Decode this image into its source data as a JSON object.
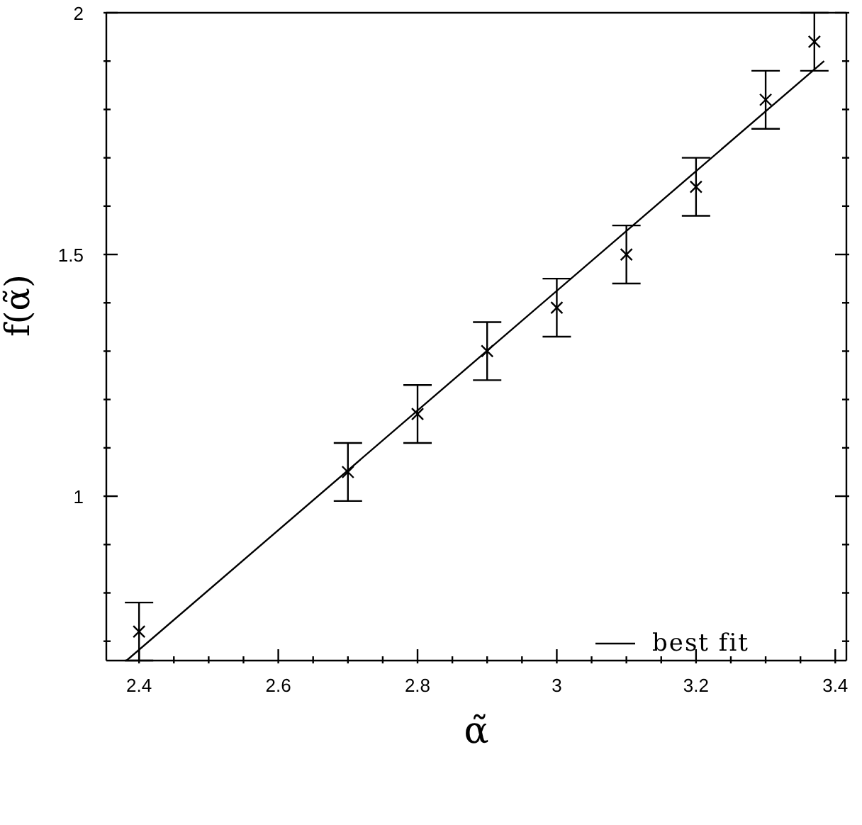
{
  "chart_data": {
    "type": "scatter",
    "xlabel": "α̃",
    "ylabel": "f(α̃)",
    "xlim": [
      2.353,
      3.416
    ],
    "ylim": [
      0.66,
      2
    ],
    "xticks": [
      2.4,
      {
        "value": 2.45,
        "label": null
      },
      {
        "value": 2.5,
        "label": null
      },
      {
        "value": 2.55,
        "label": null
      },
      2.6,
      {
        "value": 2.65,
        "label": null
      },
      {
        "value": 2.7,
        "label": null
      },
      {
        "value": 2.75,
        "label": null
      },
      2.8,
      {
        "value": 2.85,
        "label": null
      },
      {
        "value": 2.9,
        "label": null
      },
      {
        "value": 2.95,
        "label": null
      },
      3,
      {
        "value": 3.05,
        "label": null
      },
      {
        "value": 3.1,
        "label": null
      },
      {
        "value": 3.15,
        "label": null
      },
      3.2,
      {
        "value": 3.25,
        "label": null
      },
      {
        "value": 3.3,
        "label": null
      },
      {
        "value": 3.35,
        "label": null
      },
      3.4
    ],
    "yticks": [
      {
        "value": 0.7,
        "label": null
      },
      {
        "value": 0.8,
        "label": null
      },
      {
        "value": 0.9,
        "label": null
      },
      1,
      {
        "value": 1.1,
        "label": null
      },
      {
        "value": 1.2,
        "label": null
      },
      {
        "value": 1.3,
        "label": null
      },
      {
        "value": 1.4,
        "label": null
      },
      1.5,
      {
        "value": 1.6,
        "label": null
      },
      {
        "value": 1.7,
        "label": null
      },
      {
        "value": 1.8,
        "label": null
      },
      {
        "value": 1.9,
        "label": null
      },
      2
    ],
    "grid": false,
    "legend": "bottom right",
    "series": [
      {
        "type": "scatter",
        "color": "#000000",
        "marker": "cross",
        "x": [
          2.4,
          2.7,
          2.8,
          2.9,
          3.0,
          3.1,
          3.2,
          3.3,
          3.37
        ],
        "values": [
          0.72,
          1.05,
          1.17,
          1.3,
          1.39,
          1.5,
          1.64,
          1.82,
          1.94
        ],
        "errors": [
          0.06,
          0.06,
          0.06,
          0.06,
          0.06,
          0.06,
          0.06,
          0.06,
          0.06
        ]
      },
      {
        "type": "line",
        "name": "best fit",
        "color": "#000000",
        "line_style": "solid",
        "x": [
          2.382,
          3.384
        ],
        "values": [
          0.66,
          1.9
        ]
      }
    ]
  }
}
